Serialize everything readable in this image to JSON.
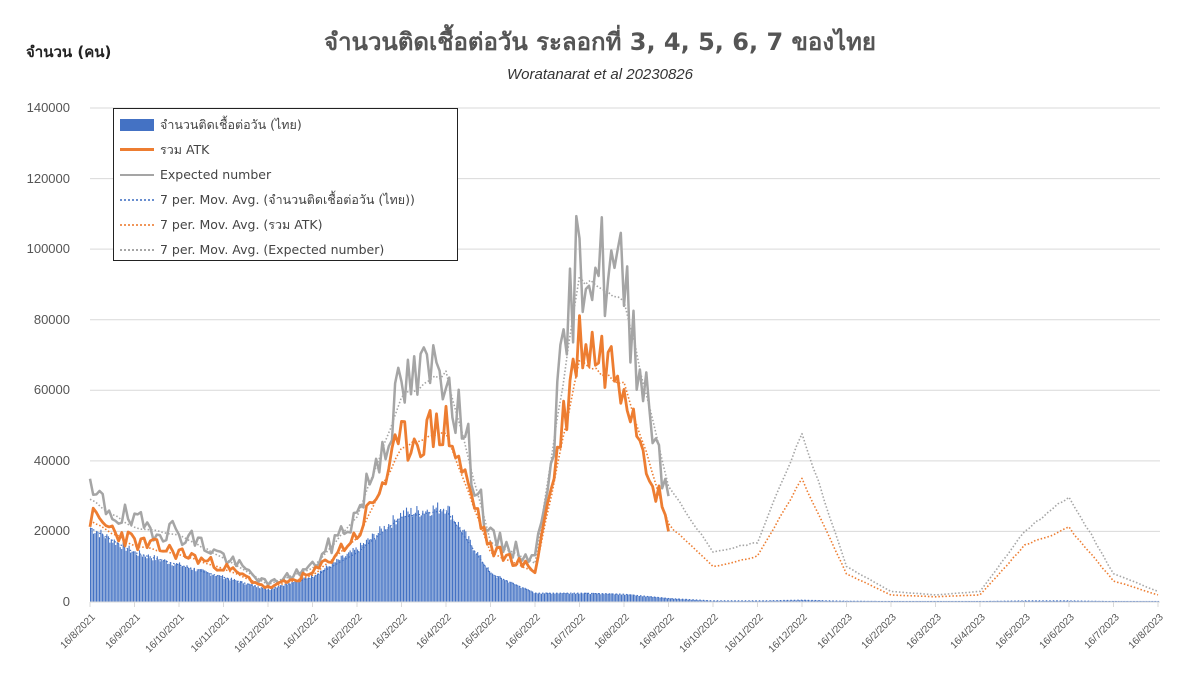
{
  "chart_data": {
    "type": "line",
    "title": "จำนวนติดเชื้อต่อวัน ระลอกที่ 3, 4, 5, 6, 7 ของไทย",
    "subtitle": "Woratanarat et al 20230826",
    "ylabel": "จำนวน (คน)",
    "xlabel": "",
    "ylim": [
      0,
      140000
    ],
    "yticks": [
      "140000",
      "120000",
      "100000",
      "80000",
      "60000",
      "40000",
      "20000",
      "0"
    ],
    "grid": true,
    "legend_position": "upper-left",
    "x": [
      "16/8/2021",
      "16/9/2021",
      "16/10/2021",
      "16/11/2021",
      "16/12/2021",
      "16/1/2022",
      "16/2/2022",
      "16/3/2022",
      "16/4/2022",
      "16/5/2022",
      "16/6/2022",
      "16/7/2022",
      "16/8/2022",
      "16/9/2022",
      "16/10/2022",
      "16/11/2022",
      "16/12/2022",
      "16/1/2023",
      "16/2/2023",
      "16/3/2023",
      "16/4/2023",
      "16/5/2023",
      "16/6/2023",
      "16/7/2023",
      "16/8/2023"
    ],
    "series": [
      {
        "name": "จำนวนติดเชื้อต่อวัน (ไทย)",
        "type": "bar",
        "color": "#4472C4",
        "values": [
          21000,
          14000,
          10500,
          7000,
          3500,
          7500,
          15000,
          25000,
          27000,
          8000,
          2500,
          2500,
          2200,
          1000,
          300,
          300,
          500,
          200,
          100,
          100,
          100,
          300,
          300,
          100,
          50
        ]
      },
      {
        "name": "รวม ATK",
        "type": "line",
        "color": "#ED7D31",
        "values": [
          24000,
          17000,
          14000,
          10000,
          4000,
          8000,
          19000,
          45000,
          50000,
          15000,
          9000,
          75000,
          65000,
          20000,
          null,
          null,
          null,
          null,
          null,
          null,
          null,
          null,
          null,
          null,
          null
        ]
      },
      {
        "name": "Expected number",
        "type": "line",
        "color": "#A5A5A5",
        "values": [
          30000,
          22000,
          20000,
          13000,
          5000,
          10000,
          25000,
          60000,
          68000,
          18000,
          12000,
          100000,
          90000,
          30000,
          null,
          null,
          null,
          null,
          null,
          null,
          null,
          null,
          null,
          null,
          null
        ]
      },
      {
        "name": "7 per. Mov. Avg. (จำนวนติดเชื้อต่อวัน (ไทย))",
        "type": "line-dotted",
        "color": "#4472C4",
        "values": [
          21000,
          14000,
          10500,
          7000,
          3500,
          7000,
          14000,
          24000,
          26000,
          8000,
          2500,
          2500,
          2200,
          1000,
          300,
          300,
          500,
          200,
          100,
          100,
          100,
          300,
          300,
          100,
          50
        ]
      },
      {
        "name": "7 per. Mov. Avg. (รวม ATK)",
        "type": "line-dotted",
        "color": "#ED7D31",
        "values": [
          23000,
          16000,
          13500,
          9500,
          4000,
          7500,
          18000,
          44000,
          48000,
          14000,
          8500,
          68000,
          62000,
          22000,
          10000,
          13000,
          35000,
          8000,
          2000,
          1500,
          2000,
          16000,
          21000,
          6000,
          2000
        ]
      },
      {
        "name": "7 per. Mov. Avg. (Expected number)",
        "type": "line-dotted",
        "color": "#A5A5A5",
        "values": [
          29000,
          21000,
          19000,
          12500,
          5000,
          9500,
          24000,
          58000,
          65000,
          17000,
          11000,
          92000,
          85000,
          33000,
          14000,
          17000,
          48000,
          10000,
          3000,
          2000,
          3000,
          20000,
          30000,
          8000,
          3000
        ]
      }
    ]
  },
  "legend": {
    "items": [
      {
        "label": "จำนวนติดเชื้อต่อวัน (ไทย)",
        "swatch": "bar"
      },
      {
        "label": "รวม ATK",
        "swatch": "line-orange"
      },
      {
        "label": "Expected number",
        "swatch": "line-gray"
      },
      {
        "label": "7 per. Mov. Avg. (จำนวนติดเชื้อต่อวัน (ไทย))",
        "swatch": "dot-blue"
      },
      {
        "label": "7 per. Mov. Avg. (รวม ATK)",
        "swatch": "dot-orange"
      },
      {
        "label": "7 per. Mov. Avg. (Expected number)",
        "swatch": "dot-gray"
      }
    ]
  },
  "colors": {
    "bar": "#4472C4",
    "atk": "#ED7D31",
    "expected": "#A5A5A5",
    "grid": "#D9D9D9"
  }
}
